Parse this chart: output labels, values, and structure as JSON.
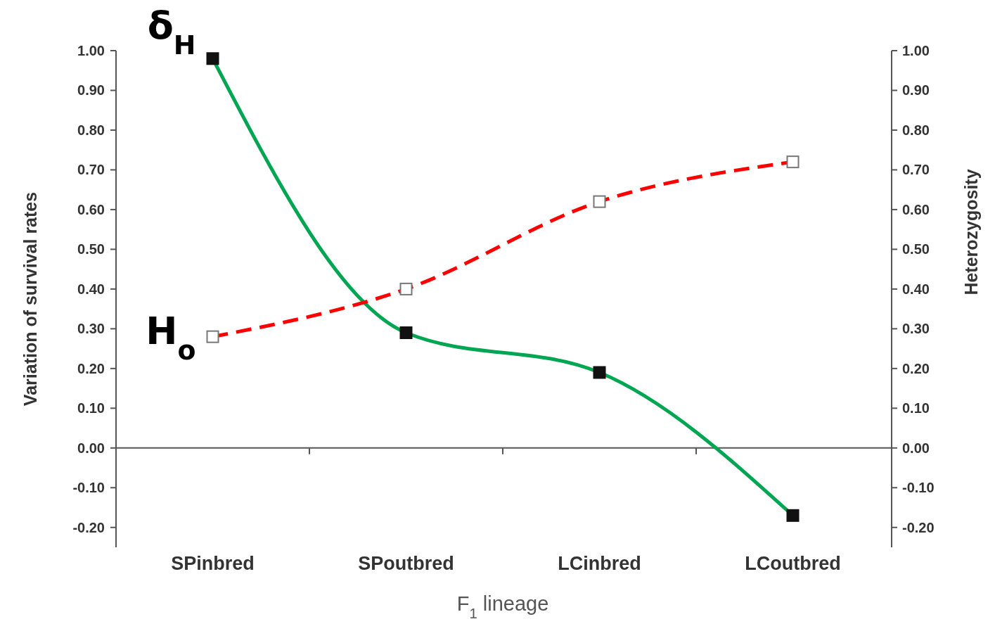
{
  "chart_data": {
    "type": "line",
    "xlabel": "F$_{1}$ lineage",
    "ylabel": "Variation of survival rates",
    "y2label": "Heterozygosity",
    "categories": [
      "SPinbred",
      "SPoutbred",
      "LCinbred",
      "LCoutbred"
    ],
    "series": [
      {
        "name": "δ$_{H}$",
        "color": "#00a651",
        "values": [
          0.98,
          0.29,
          0.19,
          -0.17
        ],
        "line_style": "solid"
      },
      {
        "name": "H$_{o}$",
        "color": "#ff0000",
        "values": [
          0.28,
          0.4,
          0.62,
          0.72
        ],
        "line_style": "dashed",
        "axis": "y2"
      }
    ],
    "ylim": [
      -0.25,
      1.0
    ],
    "yticks": [
      {
        "value": -0.2,
        "label": "-0.20"
      },
      {
        "value": -0.1,
        "label": "-0.10"
      },
      {
        "value": 0,
        "label": "0.00"
      },
      {
        "value": 0.1,
        "label": "0.10"
      },
      {
        "value": 0.2,
        "label": "0.20"
      },
      {
        "value": 0.3,
        "label": "0.30"
      },
      {
        "value": 0.4,
        "label": "0.40"
      },
      {
        "value": 0.5,
        "label": "0.50"
      },
      {
        "value": 0.6,
        "label": "0.60"
      },
      {
        "value": 0.7,
        "label": "0.70"
      },
      {
        "value": 0.8,
        "label": "0.80"
      },
      {
        "value": 0.9,
        "label": "0.90"
      },
      {
        "value": 1.0,
        "label": "1.00"
      }
    ],
    "y2lim": [
      -0.25,
      1.0
    ],
    "y2ticks": [
      {
        "value": -0.2,
        "label": "-0.20"
      },
      {
        "value": -0.1,
        "label": "-0.10"
      },
      {
        "value": 0,
        "label": "0.00"
      },
      {
        "value": 0.1,
        "label": "0.10"
      },
      {
        "value": 0.2,
        "label": "0.20"
      },
      {
        "value": 0.3,
        "label": "0.30"
      },
      {
        "value": 0.4,
        "label": "0.40"
      },
      {
        "value": 0.5,
        "label": "0.50"
      },
      {
        "value": 0.6,
        "label": "0.60"
      },
      {
        "value": 0.7,
        "label": "0.70"
      },
      {
        "value": 0.8,
        "label": "0.80"
      },
      {
        "value": 0.9,
        "label": "0.90"
      },
      {
        "value": 1.0,
        "label": "1.00"
      }
    ],
    "marker": "square"
  }
}
